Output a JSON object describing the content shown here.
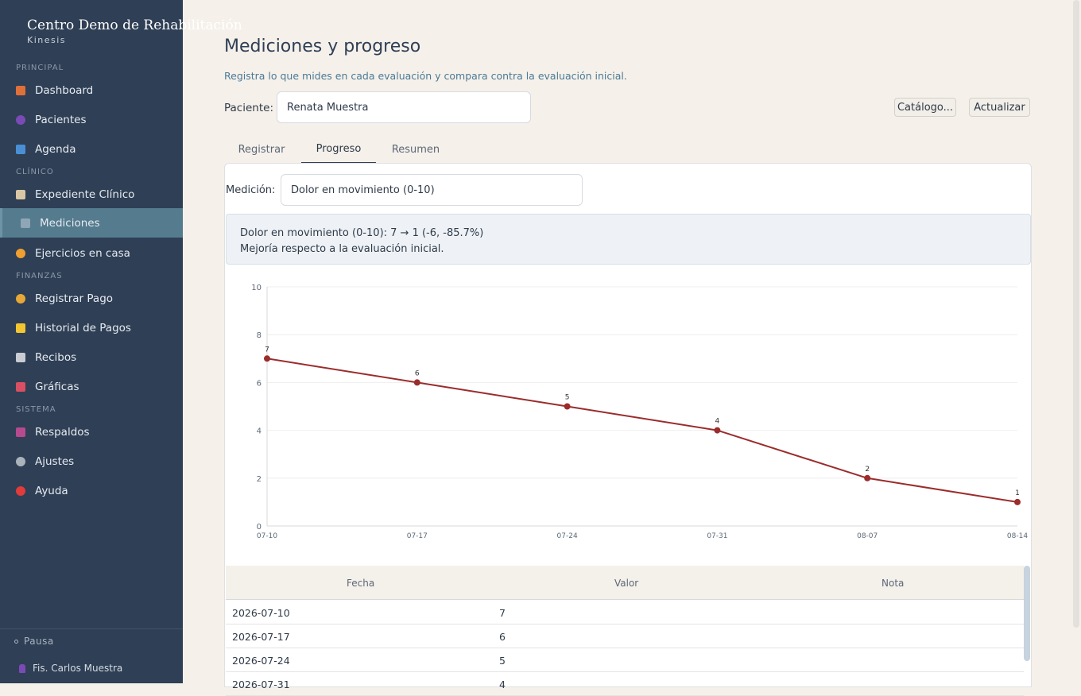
{
  "brand": {
    "title": "Centro Demo de Rehabilitación",
    "subtitle": "Kinesis"
  },
  "sidebar": {
    "sections": [
      {
        "label": "PRINCIPAL"
      },
      {
        "label": "CLÍNICO"
      },
      {
        "label": "FINANZAS"
      },
      {
        "label": "SISTEMA"
      }
    ],
    "items": [
      {
        "label": "Dashboard",
        "icon": "home-icon",
        "color": "#e0703a"
      },
      {
        "label": "Pacientes",
        "icon": "users-icon",
        "color": "#7b4bb5"
      },
      {
        "label": "Agenda",
        "icon": "calendar-icon",
        "color": "#4a8fd6"
      },
      {
        "label": "Expediente Clínico",
        "icon": "clipboard-icon",
        "color": "#d9c6a5"
      },
      {
        "label": "Mediciones",
        "icon": "ruler-icon",
        "color": "#8fa6b6"
      },
      {
        "label": "Ejercicios en casa",
        "icon": "runner-icon",
        "color": "#f0a030"
      },
      {
        "label": "Registrar Pago",
        "icon": "money-bag-icon",
        "color": "#e8a838"
      },
      {
        "label": "Historial de Pagos",
        "icon": "ledger-icon",
        "color": "#f2c531"
      },
      {
        "label": "Recibos",
        "icon": "receipt-icon",
        "color": "#c9ccd2"
      },
      {
        "label": "Gráficas",
        "icon": "chart-icon",
        "color": "#d94f63"
      },
      {
        "label": "Respaldos",
        "icon": "floppy-icon",
        "color": "#b64a8f"
      },
      {
        "label": "Ajustes",
        "icon": "gear-icon",
        "color": "#aab2bc"
      },
      {
        "label": "Ayuda",
        "icon": "question-icon",
        "color": "#e23b3b"
      }
    ],
    "status": "Pausa",
    "user": "Fis. Carlos Muestra"
  },
  "main": {
    "title": "Mediciones y progreso",
    "subtitle": "Registra lo que mides en cada evaluación y compara contra la evaluación inicial.",
    "patient_label": "Paciente:",
    "patient_value": "Renata Muestra",
    "catalog_button": "Catálogo...",
    "refresh_button": "Actualizar",
    "tabs": [
      {
        "label": "Registrar"
      },
      {
        "label": "Progreso"
      },
      {
        "label": "Resumen"
      }
    ],
    "measure_label": "Medición:",
    "measure_value": "Dolor en movimiento (0-10)",
    "summary_line1": "Dolor en movimiento (0-10): 7 → 1 (-6, -85.7%)",
    "summary_line2": "Mejoría respecto a la evaluación inicial.",
    "table": {
      "headers": [
        "Fecha",
        "Valor",
        "Nota"
      ],
      "rows": [
        {
          "date": "2026-07-10",
          "value": "7",
          "note": ""
        },
        {
          "date": "2026-07-17",
          "value": "6",
          "note": ""
        },
        {
          "date": "2026-07-24",
          "value": "5",
          "note": ""
        },
        {
          "date": "2026-07-31",
          "value": "4",
          "note": ""
        }
      ]
    }
  },
  "chart_data": {
    "type": "line",
    "categories": [
      "07-10",
      "07-17",
      "07-24",
      "07-31",
      "08-07",
      "08-14"
    ],
    "values": [
      7,
      6,
      5,
      4,
      2,
      1
    ],
    "ylim": [
      0,
      10
    ],
    "yticks": [
      0,
      2,
      4,
      6,
      8,
      10
    ],
    "grid": true,
    "color": "#9b2c2c"
  }
}
